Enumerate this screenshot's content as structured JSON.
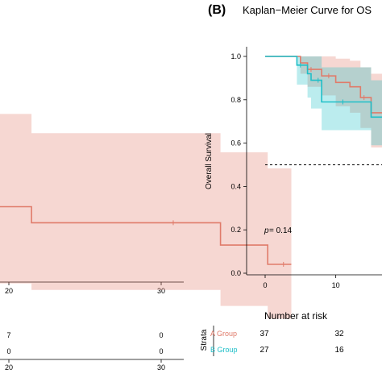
{
  "panel_b": {
    "label": "(B)",
    "title": "Kaplan−Meier Curve for OS"
  },
  "left_panel": {
    "x_ticks": [
      "20",
      "30"
    ],
    "table_ticks": [
      "20",
      "30"
    ],
    "risk_rows": [
      [
        "7",
        "0"
      ],
      [
        "0",
        "0"
      ]
    ]
  },
  "pvalue": {
    "prefix": "p",
    "text": " = 0.14"
  },
  "risk_table": {
    "title": "Number at risk",
    "strata_label": "Strata",
    "groups": [
      {
        "name": "A Group",
        "counts": [
          "37",
          "32"
        ],
        "color": "#E07B6A"
      },
      {
        "name": "B Group",
        "counts": [
          "27",
          "16"
        ],
        "color": "#1FBFC8"
      }
    ]
  },
  "chart_data": [
    {
      "type": "line",
      "title": "",
      "xlabel": "",
      "ylabel": "",
      "x_ticks": [
        20,
        30
      ],
      "xlim": [
        11,
        35
      ],
      "ylim": [
        0.0,
        1.0
      ],
      "series": [
        {
          "color": "#E07B6A",
          "x": [
            11,
            13,
            23,
            25,
            28,
            29.5
          ],
          "y": [
            0.5,
            0.45,
            0.45,
            0.38,
            0.32,
            0.32
          ],
          "upper": [
            0.79,
            0.73,
            0.73,
            0.67,
            0.62,
            0.62
          ],
          "lower": [
            0.26,
            0.24,
            0.24,
            0.19,
            0.15,
            0.15
          ],
          "censor_x": [
            22,
            29
          ]
        }
      ]
    },
    {
      "type": "line",
      "title": "Kaplan−Meier Curve for OS",
      "xlabel": "",
      "ylabel": "Overall Survival",
      "x_ticks": [
        0,
        10
      ],
      "y_ticks": [
        0.0,
        0.2,
        0.4,
        0.6,
        0.8,
        1.0
      ],
      "xlim": [
        0,
        17
      ],
      "ylim": [
        0.0,
        1.0
      ],
      "reference_line": 0.5,
      "series": [
        {
          "name": "A Group",
          "color": "#E07B6A",
          "x": [
            0,
            5,
            6,
            8,
            10,
            12,
            13.5,
            15
          ],
          "y": [
            1.0,
            0.97,
            0.94,
            0.91,
            0.88,
            0.86,
            0.81,
            0.74
          ],
          "upper": [
            1.0,
            1.0,
            1.0,
            1.0,
            0.99,
            0.98,
            0.95,
            0.92
          ],
          "lower": [
            1.0,
            0.92,
            0.86,
            0.82,
            0.77,
            0.74,
            0.67,
            0.58
          ],
          "censor_x": [
            6.5,
            9,
            14
          ]
        },
        {
          "name": "B Group",
          "color": "#1FBFC8",
          "x": [
            0,
            4.5,
            6,
            6.5,
            8,
            15
          ],
          "y": [
            1.0,
            0.96,
            0.92,
            0.89,
            0.79,
            0.72
          ],
          "upper": [
            1.0,
            1.0,
            1.0,
            1.0,
            0.95,
            0.89
          ],
          "lower": [
            1.0,
            0.87,
            0.81,
            0.76,
            0.66,
            0.59
          ],
          "censor_x": [
            5,
            7.5,
            11
          ]
        }
      ]
    }
  ]
}
